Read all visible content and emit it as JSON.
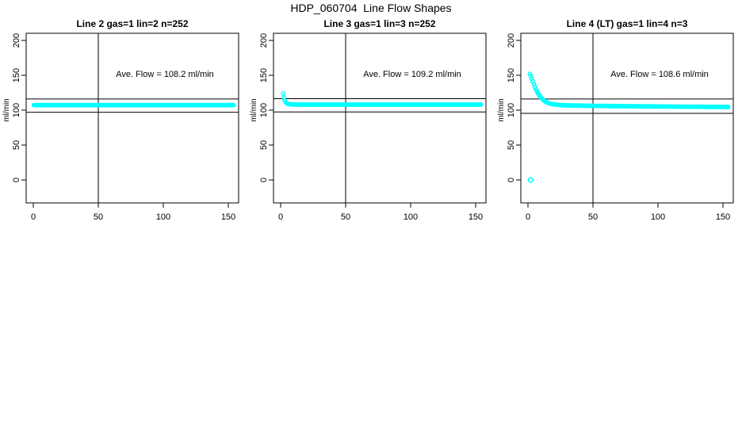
{
  "main_title": "HDP_060704  Line Flow Shapes",
  "colors": {
    "marker": "#00FFFF",
    "axis": "#000000",
    "background": "#FFFFFF"
  },
  "chart_data": [
    {
      "type": "scatter",
      "title": "Line 2 gas=1 lin=2 n=252",
      "annotation": "Ave. Flow =  108.2  ml/min",
      "ave_flow_ml_min": 108.2,
      "n": 252,
      "ylabel": "ml/min",
      "xlim": [
        0,
        155
      ],
      "ylim": [
        0,
        200
      ],
      "xticks": [
        0,
        50,
        100,
        150
      ],
      "yticks": [
        0,
        50,
        100,
        150,
        200
      ],
      "grid": false,
      "vline_x": 50,
      "hlines": [
        116,
        97
      ],
      "series_keypoints": [
        [
          0.5,
          107.3
        ],
        [
          154,
          107.3
        ]
      ],
      "outliers": []
    },
    {
      "type": "scatter",
      "title": "Line 3 gas=1 lin=3 n=252",
      "annotation": "Ave. Flow =  109.2  ml/min",
      "ave_flow_ml_min": 109.2,
      "n": 252,
      "ylabel": "ml/min",
      "xlim": [
        0,
        155
      ],
      "ylim": [
        0,
        200
      ],
      "xticks": [
        0,
        50,
        100,
        150
      ],
      "yticks": [
        0,
        50,
        100,
        150,
        200
      ],
      "grid": false,
      "vline_x": 50,
      "hlines": [
        116.5,
        97.5
      ],
      "series_keypoints": [
        [
          2,
          124
        ],
        [
          2.6,
          118
        ],
        [
          3.2,
          114
        ],
        [
          4,
          111
        ],
        [
          5,
          109.5
        ],
        [
          6.5,
          108.7
        ],
        [
          9,
          108.2
        ],
        [
          15,
          108
        ],
        [
          154,
          108
        ]
      ],
      "outliers": []
    },
    {
      "type": "scatter",
      "title": "Line 4 (LT) gas=1 lin=4 n=3",
      "annotation": "Ave. Flow =  108.6  ml/min",
      "ave_flow_ml_min": 108.6,
      "n": 3,
      "ylabel": "ml/min",
      "xlim": [
        0,
        155
      ],
      "ylim": [
        0,
        200
      ],
      "xticks": [
        0,
        50,
        100,
        150
      ],
      "yticks": [
        0,
        50,
        100,
        150,
        200
      ],
      "grid": false,
      "vline_x": 50,
      "hlines": [
        116,
        95.5
      ],
      "series_keypoints": [
        [
          1.5,
          152
        ],
        [
          2.2,
          149
        ],
        [
          3,
          145
        ],
        [
          3.8,
          141
        ],
        [
          4.6,
          137
        ],
        [
          5.4,
          133
        ],
        [
          6.2,
          129.5
        ],
        [
          7,
          126.5
        ],
        [
          8,
          123.5
        ],
        [
          9,
          120.5
        ],
        [
          10,
          118
        ],
        [
          11,
          116
        ],
        [
          12,
          114.2
        ],
        [
          13.5,
          112.2
        ],
        [
          15,
          110.8
        ],
        [
          17,
          109.5
        ],
        [
          19,
          108.6
        ],
        [
          22,
          107.8
        ],
        [
          26,
          107.2
        ],
        [
          32,
          106.8
        ],
        [
          45,
          106.3
        ],
        [
          70,
          105.8
        ],
        [
          100,
          105.3
        ],
        [
          130,
          104.9
        ],
        [
          154,
          104.6
        ]
      ],
      "outliers": [
        [
          2,
          0
        ]
      ]
    }
  ]
}
